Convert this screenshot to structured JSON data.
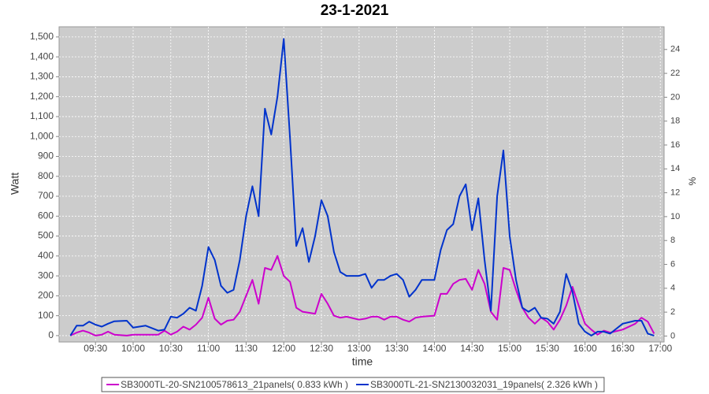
{
  "chart_data": {
    "type": "line",
    "title": "23-1-2021",
    "x_label": "time",
    "y_label": "Watt",
    "y2_label": "%",
    "x": [
      "09:10",
      "09:15",
      "09:20",
      "09:25",
      "09:30",
      "09:35",
      "09:40",
      "09:45",
      "09:55",
      "10:00",
      "10:10",
      "10:20",
      "10:25",
      "10:30",
      "10:35",
      "10:40",
      "10:45",
      "10:50",
      "10:55",
      "11:00",
      "11:05",
      "11:10",
      "11:15",
      "11:20",
      "11:25",
      "11:30",
      "11:35",
      "11:40",
      "11:45",
      "11:50",
      "11:55",
      "12:00",
      "12:05",
      "12:10",
      "12:15",
      "12:20",
      "12:25",
      "12:30",
      "12:35",
      "12:40",
      "12:45",
      "12:50",
      "13:00",
      "13:05",
      "13:10",
      "13:15",
      "13:20",
      "13:25",
      "13:30",
      "13:35",
      "13:40",
      "13:45",
      "13:50",
      "14:00",
      "14:05",
      "14:10",
      "14:15",
      "14:20",
      "14:25",
      "14:30",
      "14:35",
      "14:40",
      "14:45",
      "14:50",
      "14:55",
      "15:00",
      "15:05",
      "15:10",
      "15:15",
      "15:20",
      "15:25",
      "15:30",
      "15:35",
      "15:40",
      "15:45",
      "15:50",
      "15:55",
      "16:00",
      "16:05",
      "16:10",
      "16:15",
      "16:20",
      "16:30",
      "16:40",
      "16:45",
      "16:50",
      "16:55"
    ],
    "series": [
      {
        "name": "SB3000TL-20-SN2100578613_21panels( 0.833 kWh )",
        "color": "#cc00cc",
        "values": [
          0,
          15,
          25,
          15,
          0,
          5,
          20,
          5,
          0,
          5,
          5,
          5,
          25,
          5,
          20,
          45,
          30,
          55,
          90,
          190,
          85,
          55,
          75,
          80,
          120,
          200,
          280,
          160,
          340,
          330,
          400,
          300,
          270,
          140,
          120,
          115,
          110,
          210,
          160,
          100,
          90,
          95,
          80,
          85,
          95,
          95,
          80,
          95,
          95,
          80,
          70,
          90,
          95,
          100,
          210,
          210,
          260,
          280,
          285,
          230,
          330,
          260,
          120,
          80,
          340,
          330,
          230,
          140,
          90,
          60,
          90,
          70,
          30,
          80,
          150,
          245,
          150,
          60,
          30,
          5,
          25,
          15,
          30,
          60,
          90,
          70,
          10
        ]
      },
      {
        "name": "SB3000TL-21-SN2130032031_19panels( 2.326 kWh )",
        "color": "#0033cc",
        "values": [
          0,
          50,
          50,
          70,
          55,
          45,
          60,
          72,
          75,
          40,
          50,
          25,
          30,
          95,
          90,
          110,
          140,
          125,
          250,
          445,
          380,
          250,
          215,
          230,
          380,
          600,
          750,
          600,
          1140,
          1010,
          1200,
          1490,
          990,
          450,
          540,
          370,
          500,
          680,
          600,
          420,
          320,
          300,
          300,
          310,
          240,
          280,
          280,
          300,
          310,
          280,
          195,
          230,
          280,
          280,
          430,
          530,
          560,
          700,
          760,
          530,
          690,
          380,
          125,
          700,
          930,
          500,
          280,
          140,
          120,
          140,
          90,
          85,
          60,
          120,
          310,
          220,
          60,
          20,
          0,
          20,
          20,
          10,
          60,
          75,
          75,
          10,
          0
        ]
      }
    ],
    "xlim": [
      "09:01",
      "17:03"
    ],
    "xticks": [
      "09:30",
      "10:00",
      "10:30",
      "11:00",
      "11:30",
      "12:00",
      "12:30",
      "13:00",
      "13:30",
      "14:00",
      "14:30",
      "15:00",
      "15:30",
      "16:00",
      "16:30",
      "17:00"
    ],
    "ylim": [
      -32,
      1551
    ],
    "yticks": [
      0,
      100,
      200,
      300,
      400,
      500,
      600,
      700,
      800,
      900,
      {
        "value": 1000,
        "label": "1,000"
      },
      {
        "value": 1100,
        "label": "1,100"
      },
      {
        "value": 1200,
        "label": "1,200"
      },
      {
        "value": 1300,
        "label": "1,300"
      },
      {
        "value": 1400,
        "label": "1,400"
      },
      {
        "value": 1500,
        "label": "1,500"
      }
    ],
    "y2lim": [
      -0.5,
      25.9
    ],
    "y2ticks": [
      0,
      2,
      4,
      6,
      8,
      10,
      12,
      14,
      16,
      18,
      20,
      22,
      24
    ],
    "grid": true,
    "legend": "bottom"
  }
}
